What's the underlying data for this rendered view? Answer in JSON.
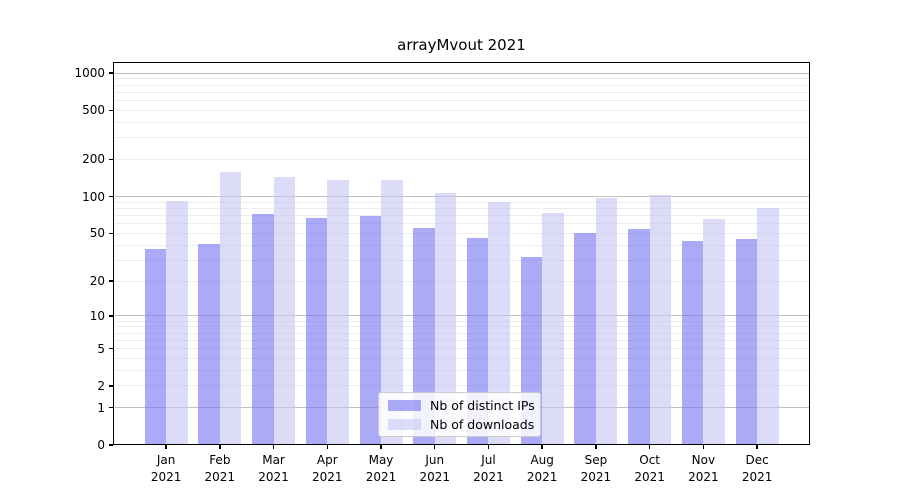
{
  "chart_data": {
    "type": "bar",
    "title": "arrayMvout 2021",
    "categories": [
      "Jan",
      "Feb",
      "Mar",
      "Apr",
      "May",
      "Jun",
      "Jul",
      "Aug",
      "Sep",
      "Oct",
      "Nov",
      "Dec"
    ],
    "year_label": "2021",
    "series": [
      {
        "name": "Nb of distinct IPs",
        "color": "rgba(113,113,240,0.60)",
        "values": [
          37,
          41,
          72,
          67,
          69,
          55,
          46,
          32,
          50,
          54,
          43,
          45
        ]
      },
      {
        "name": "Nb of downloads",
        "color": "rgba(197,197,245,0.60)",
        "values": [
          92,
          157,
          144,
          137,
          136,
          107,
          90,
          73,
          98,
          103,
          66,
          81
        ]
      }
    ],
    "yscale": "log1p",
    "ylim": [
      0,
      1200
    ],
    "yticks": [
      0,
      1,
      2,
      5,
      10,
      20,
      50,
      100,
      200,
      500,
      1000
    ],
    "major_gridlines": [
      1,
      10,
      100,
      1000
    ],
    "minor_gridlines": [
      2,
      3,
      4,
      5,
      6,
      7,
      8,
      9,
      20,
      30,
      40,
      50,
      60,
      70,
      80,
      90,
      200,
      300,
      400,
      500,
      600,
      700,
      800,
      900
    ],
    "grid_color_major": "#c0c0c0",
    "grid_color_minor": "#ededed",
    "legend_position": "lower center"
  }
}
